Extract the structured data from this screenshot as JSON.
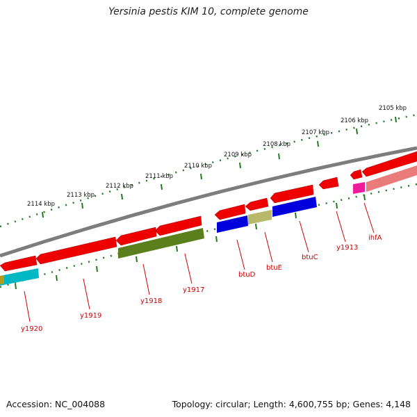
{
  "title": "Yersinia pestis KIM 10, complete genome",
  "footer": {
    "accession": "Accession: NC_004088",
    "summary": "Topology: circular; Length: 4,600,755 bp; Genes: 4,148"
  },
  "colors": {
    "backbone": "#7d7d7d",
    "tick": "#1f7a1f",
    "label": "#cc0000",
    "feature_red": "#e60000",
    "feature_blue": "#0000dd",
    "feature_olive": "#5a7f1c",
    "feature_khaki": "#b8b86a",
    "feature_cyan": "#00b8c4",
    "feature_magenta": "#ee1c9b",
    "feature_salmon": "#ea7b7b"
  },
  "scale_labels": [
    "2105 kbp",
    "2106 kbp",
    "2107 kbp",
    "2108 kbp",
    "2109 kbp",
    "2110 kbp",
    "2111 kbp",
    "2112 kbp",
    "2113 kbp",
    "2114 kbp"
  ],
  "gene_labels": [
    "ihfA",
    "y1913",
    "btuC",
    "btuE",
    "btuD",
    "y1917",
    "y1918",
    "y1919",
    "y1920"
  ]
}
